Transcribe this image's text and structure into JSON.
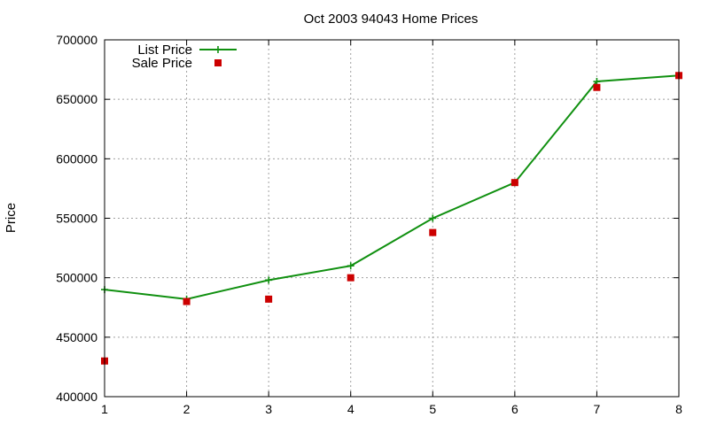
{
  "chart_data": {
    "type": "line",
    "title": "Oct 2003 94043 Home Prices",
    "xlabel": "",
    "ylabel": "Price",
    "xlim": [
      1,
      8
    ],
    "ylim": [
      400000,
      700000
    ],
    "x_ticks": [
      "1",
      "2",
      "3",
      "4",
      "5",
      "6",
      "7",
      "8"
    ],
    "y_ticks": [
      "400000",
      "450000",
      "500000",
      "550000",
      "600000",
      "650000",
      "700000"
    ],
    "grid": true,
    "legend_position": "top-left",
    "x": [
      1,
      2,
      3,
      4,
      5,
      6,
      7,
      8
    ],
    "series": [
      {
        "name": "List Price",
        "style": "line-with-plus-markers",
        "color": "#109010",
        "values": [
          490000,
          482000,
          498000,
          510000,
          550000,
          580000,
          665000,
          670000
        ]
      },
      {
        "name": "Sale Price",
        "style": "square-markers",
        "color": "#cc0000",
        "values": [
          430000,
          480000,
          482000,
          500000,
          538000,
          580000,
          660000,
          670000
        ]
      }
    ]
  }
}
